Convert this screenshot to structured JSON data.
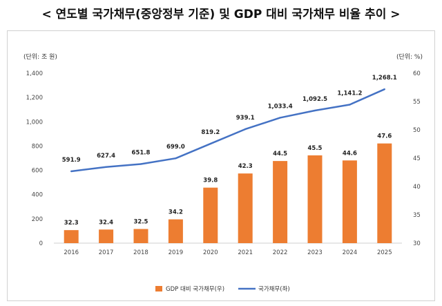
{
  "title": "< 연도별 국가채무(중앙정부 기준) 및 GDP 대비 국가채무 비율 추이 >",
  "chart_data": {
    "type": "bar+line",
    "categories": [
      "2016",
      "2017",
      "2018",
      "2019",
      "2020",
      "2021",
      "2022",
      "2023",
      "2024",
      "2025"
    ],
    "left_unit": "(단위: 조 원)",
    "right_unit": "(단위: %)",
    "left_axis": {
      "min": 0,
      "max": 1400,
      "ticks": [
        "0",
        "200",
        "400",
        "600",
        "800",
        "1,000",
        "1,200",
        "1,400"
      ]
    },
    "right_axis": {
      "min": 30,
      "max": 60,
      "ticks": [
        "30",
        "35",
        "40",
        "45",
        "50",
        "55",
        "60"
      ]
    },
    "series": [
      {
        "name": "GDP 대비 국가채무(우)",
        "type": "bar",
        "axis": "right",
        "color": "#ED7D31",
        "values": [
          32.3,
          32.4,
          32.5,
          34.2,
          39.8,
          42.3,
          44.5,
          45.5,
          44.6,
          47.6
        ],
        "labels": [
          "32.3",
          "32.4",
          "32.5",
          "34.2",
          "39.8",
          "42.3",
          "44.5",
          "45.5",
          "44.6",
          "47.6"
        ]
      },
      {
        "name": "국가채무(좌)",
        "type": "line",
        "axis": "left",
        "color": "#4472C4",
        "values": [
          591.9,
          627.4,
          651.8,
          699.0,
          819.2,
          939.1,
          1033.4,
          1092.5,
          1141.2,
          1268.1
        ],
        "labels": [
          "591.9",
          "627.4",
          "651.8",
          "699.0",
          "819.2",
          "939.1",
          "1,033.4",
          "1,092.5",
          "1,141.2",
          "1,268.1"
        ]
      }
    ],
    "legend": "bottom-center",
    "grid": false
  }
}
